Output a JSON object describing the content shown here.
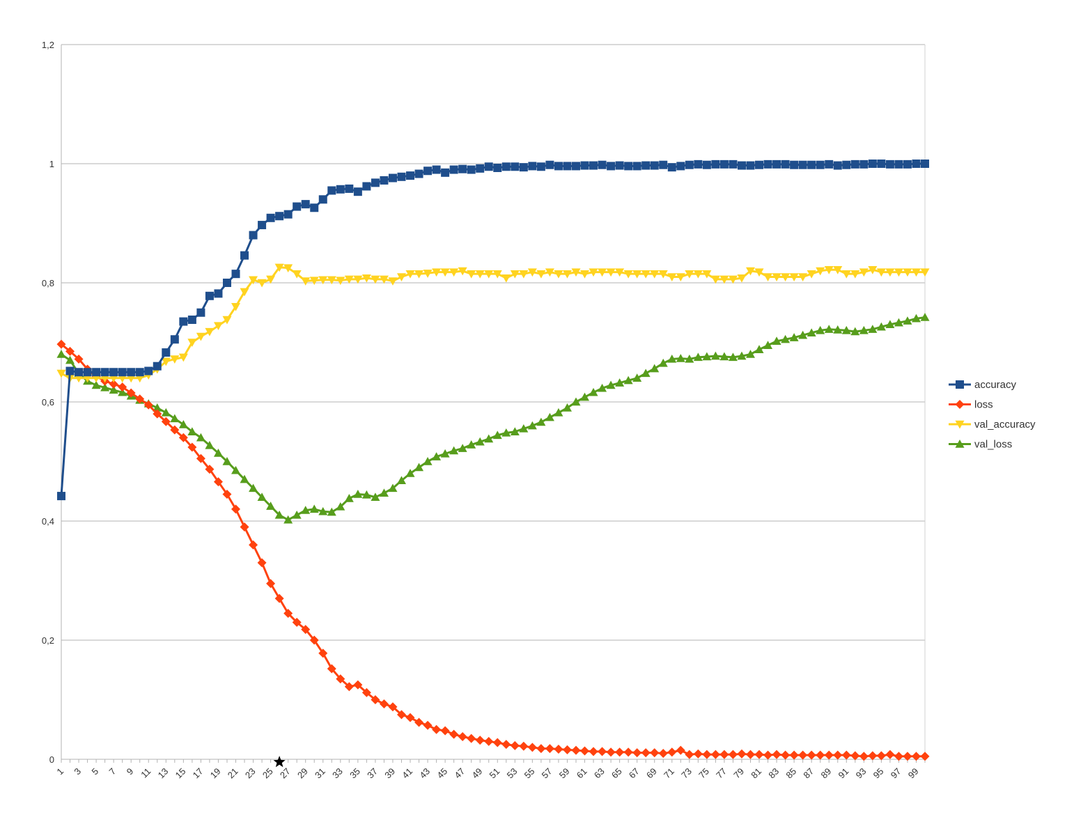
{
  "chart_data": {
    "type": "line",
    "title": "",
    "xlabel": "",
    "ylabel": "",
    "x_start": 1,
    "x_end": 100,
    "x_tick_labels": [
      "1",
      "3",
      "5",
      "7",
      "9",
      "11",
      "13",
      "15",
      "17",
      "19",
      "21",
      "23",
      "25",
      "27",
      "29",
      "31",
      "33",
      "35",
      "37",
      "39",
      "41",
      "43",
      "45",
      "47",
      "49",
      "51",
      "53",
      "55",
      "57",
      "59",
      "61",
      "63",
      "65",
      "67",
      "69",
      "71",
      "73",
      "75",
      "77",
      "79",
      "81",
      "83",
      "85",
      "87",
      "89",
      "91",
      "93",
      "95",
      "97",
      "99"
    ],
    "ylim": [
      0,
      1.2
    ],
    "y_tick_labels": [
      "0",
      "0,2",
      "0,4",
      "0,6",
      "0,8",
      "1",
      "1,2"
    ],
    "y_tick_values": [
      0,
      0.2,
      0.4,
      0.6,
      0.8,
      1.0,
      1.2
    ],
    "grid": "horizontal",
    "legend_position": "right",
    "star_marker_x": 26,
    "series": [
      {
        "name": "accuracy",
        "color": "#1f4e8c",
        "marker": "square",
        "values": [
          0.442,
          0.652,
          0.65,
          0.65,
          0.65,
          0.65,
          0.65,
          0.65,
          0.65,
          0.65,
          0.652,
          0.66,
          0.683,
          0.705,
          0.735,
          0.738,
          0.75,
          0.778,
          0.782,
          0.8,
          0.815,
          0.846,
          0.88,
          0.897,
          0.909,
          0.912,
          0.915,
          0.928,
          0.932,
          0.926,
          0.94,
          0.955,
          0.957,
          0.958,
          0.953,
          0.962,
          0.968,
          0.972,
          0.976,
          0.978,
          0.98,
          0.983,
          0.988,
          0.99,
          0.985,
          0.99,
          0.991,
          0.99,
          0.992,
          0.995,
          0.993,
          0.995,
          0.995,
          0.994,
          0.996,
          0.995,
          0.998,
          0.996,
          0.996,
          0.996,
          0.997,
          0.997,
          0.998,
          0.996,
          0.997,
          0.996,
          0.996,
          0.997,
          0.997,
          0.998,
          0.994,
          0.996,
          0.998,
          0.999,
          0.998,
          0.999,
          0.999,
          0.999,
          0.997,
          0.997,
          0.998,
          0.999,
          0.999,
          0.999,
          0.998,
          0.998,
          0.998,
          0.998,
          0.999,
          0.997,
          0.998,
          0.999,
          0.999,
          1.0,
          1.0,
          0.999,
          0.999,
          0.999,
          1.0,
          1.0
        ]
      },
      {
        "name": "loss",
        "color": "#ff420e",
        "marker": "diamond",
        "values": [
          0.697,
          0.685,
          0.672,
          0.655,
          0.643,
          0.635,
          0.63,
          0.625,
          0.615,
          0.605,
          0.595,
          0.58,
          0.567,
          0.553,
          0.54,
          0.524,
          0.505,
          0.487,
          0.466,
          0.445,
          0.42,
          0.39,
          0.36,
          0.33,
          0.295,
          0.27,
          0.245,
          0.23,
          0.218,
          0.2,
          0.178,
          0.152,
          0.135,
          0.122,
          0.125,
          0.112,
          0.1,
          0.093,
          0.088,
          0.075,
          0.07,
          0.062,
          0.057,
          0.05,
          0.048,
          0.042,
          0.038,
          0.035,
          0.032,
          0.03,
          0.028,
          0.025,
          0.023,
          0.022,
          0.02,
          0.018,
          0.018,
          0.017,
          0.016,
          0.015,
          0.014,
          0.013,
          0.013,
          0.012,
          0.012,
          0.012,
          0.011,
          0.011,
          0.011,
          0.01,
          0.012,
          0.015,
          0.008,
          0.009,
          0.008,
          0.008,
          0.008,
          0.008,
          0.009,
          0.008,
          0.008,
          0.007,
          0.008,
          0.007,
          0.007,
          0.007,
          0.007,
          0.007,
          0.007,
          0.007,
          0.007,
          0.006,
          0.005,
          0.006,
          0.006,
          0.008,
          0.005,
          0.005,
          0.005,
          0.005
        ]
      },
      {
        "name": "val_accuracy",
        "color": "#ffd320",
        "marker": "triangle-down",
        "values": [
          0.648,
          0.64,
          0.64,
          0.64,
          0.64,
          0.64,
          0.64,
          0.64,
          0.64,
          0.64,
          0.645,
          0.655,
          0.668,
          0.672,
          0.675,
          0.7,
          0.71,
          0.718,
          0.728,
          0.738,
          0.76,
          0.785,
          0.805,
          0.8,
          0.806,
          0.826,
          0.825,
          0.815,
          0.803,
          0.804,
          0.805,
          0.805,
          0.804,
          0.806,
          0.806,
          0.808,
          0.806,
          0.806,
          0.803,
          0.81,
          0.815,
          0.815,
          0.816,
          0.818,
          0.818,
          0.818,
          0.82,
          0.815,
          0.815,
          0.815,
          0.815,
          0.808,
          0.815,
          0.815,
          0.818,
          0.815,
          0.818,
          0.815,
          0.815,
          0.818,
          0.815,
          0.818,
          0.818,
          0.818,
          0.818,
          0.815,
          0.815,
          0.815,
          0.815,
          0.815,
          0.81,
          0.81,
          0.815,
          0.815,
          0.815,
          0.806,
          0.806,
          0.806,
          0.808,
          0.82,
          0.818,
          0.81,
          0.81,
          0.81,
          0.81,
          0.81,
          0.815,
          0.82,
          0.822,
          0.822,
          0.815,
          0.815,
          0.818,
          0.822,
          0.818,
          0.818,
          0.818,
          0.818,
          0.818,
          0.818
        ]
      },
      {
        "name": "val_loss",
        "color": "#579d1c",
        "marker": "triangle-up",
        "values": [
          0.68,
          0.67,
          0.648,
          0.635,
          0.628,
          0.624,
          0.62,
          0.616,
          0.61,
          0.603,
          0.597,
          0.59,
          0.582,
          0.572,
          0.562,
          0.55,
          0.54,
          0.527,
          0.514,
          0.5,
          0.485,
          0.47,
          0.455,
          0.44,
          0.425,
          0.41,
          0.402,
          0.41,
          0.418,
          0.42,
          0.416,
          0.415,
          0.424,
          0.438,
          0.445,
          0.444,
          0.44,
          0.447,
          0.455,
          0.468,
          0.48,
          0.49,
          0.5,
          0.508,
          0.513,
          0.518,
          0.522,
          0.528,
          0.533,
          0.538,
          0.544,
          0.548,
          0.55,
          0.555,
          0.56,
          0.566,
          0.574,
          0.582,
          0.59,
          0.6,
          0.608,
          0.616,
          0.623,
          0.628,
          0.632,
          0.636,
          0.64,
          0.648,
          0.656,
          0.665,
          0.672,
          0.673,
          0.672,
          0.675,
          0.676,
          0.677,
          0.676,
          0.675,
          0.677,
          0.68,
          0.688,
          0.695,
          0.702,
          0.705,
          0.708,
          0.712,
          0.716,
          0.72,
          0.722,
          0.721,
          0.72,
          0.718,
          0.72,
          0.722,
          0.726,
          0.73,
          0.733,
          0.736,
          0.74,
          0.742
        ]
      }
    ]
  }
}
